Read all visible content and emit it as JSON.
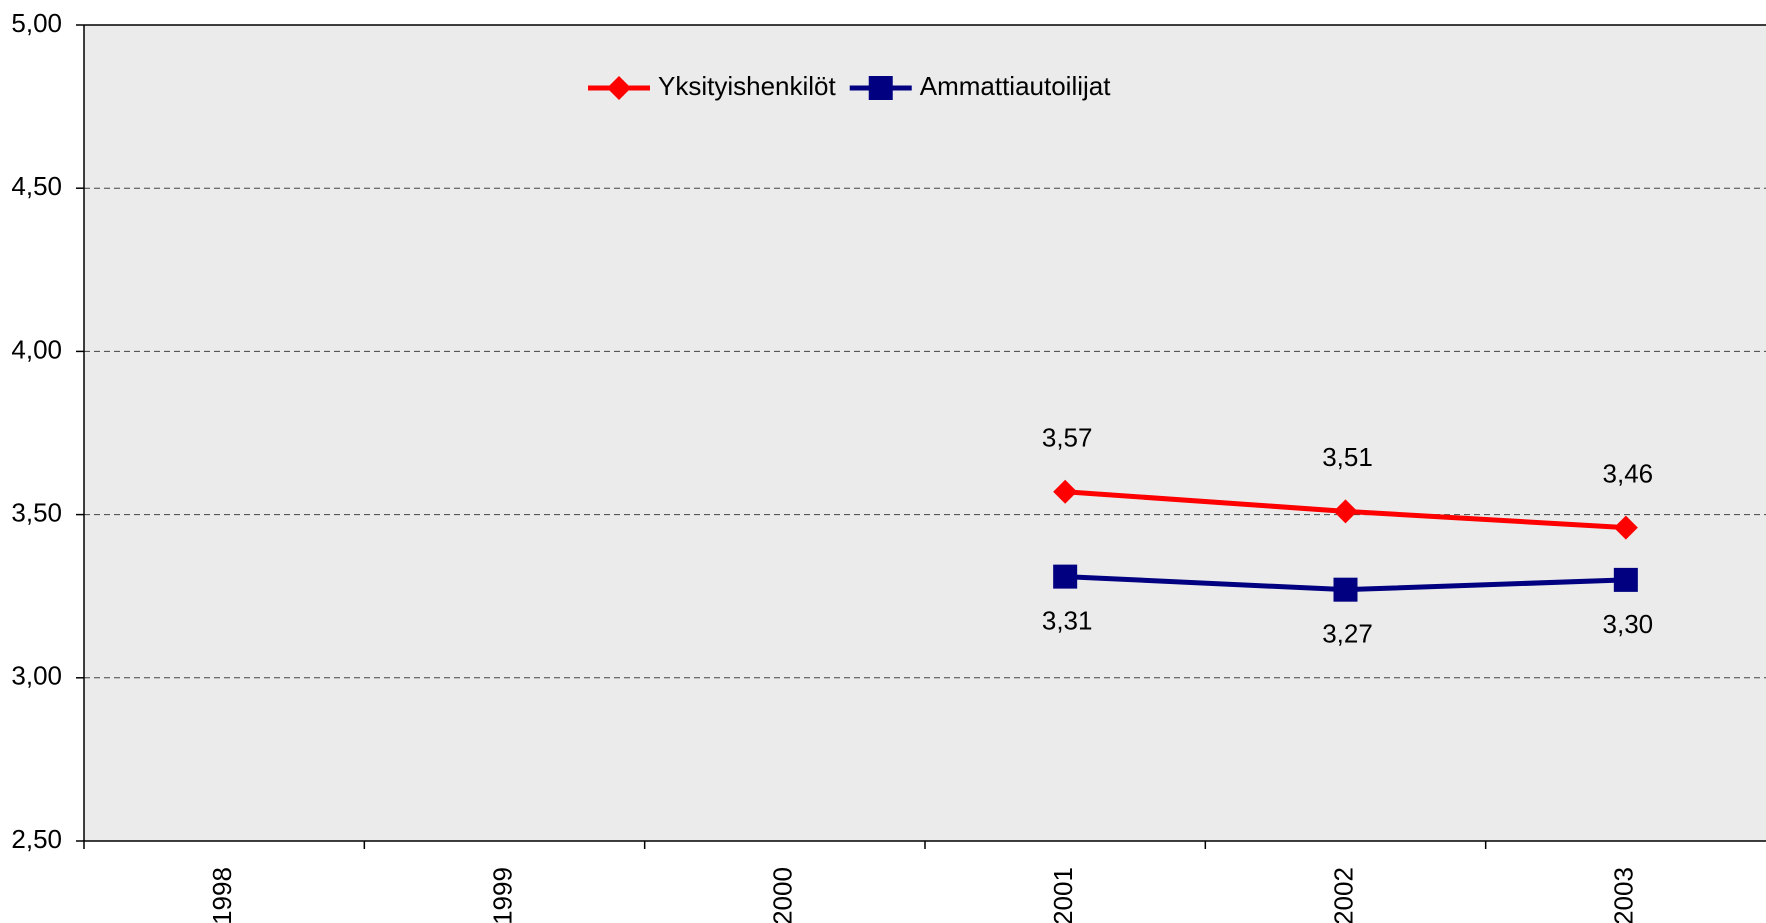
{
  "chart_data": {
    "type": "line",
    "categories": [
      "1998",
      "1999",
      "2000",
      "2001",
      "2002",
      "2003"
    ],
    "series": [
      {
        "name": "Yksityishenkilöt",
        "color": "#ff0000",
        "marker": "diamond",
        "values": [
          null,
          null,
          null,
          3.57,
          3.51,
          3.46
        ],
        "value_labels": [
          null,
          null,
          null,
          "3,57",
          "3,51",
          "3,46"
        ]
      },
      {
        "name": "Ammattiautoilijat",
        "color": "#000080",
        "marker": "square",
        "values": [
          null,
          null,
          null,
          3.31,
          3.27,
          3.3
        ],
        "value_labels": [
          null,
          null,
          null,
          "3,31",
          "3,27",
          "3,30"
        ]
      }
    ],
    "ylim": [
      2.5,
      5.0
    ],
    "yticks": [
      {
        "value": 2.5,
        "label": "2,50"
      },
      {
        "value": 3.0,
        "label": "3,00"
      },
      {
        "value": 3.5,
        "label": "3,50"
      },
      {
        "value": 4.0,
        "label": "4,00"
      },
      {
        "value": 4.5,
        "label": "4,50"
      },
      {
        "value": 5.0,
        "label": "5,00"
      }
    ],
    "grid": true,
    "legend": "top"
  }
}
